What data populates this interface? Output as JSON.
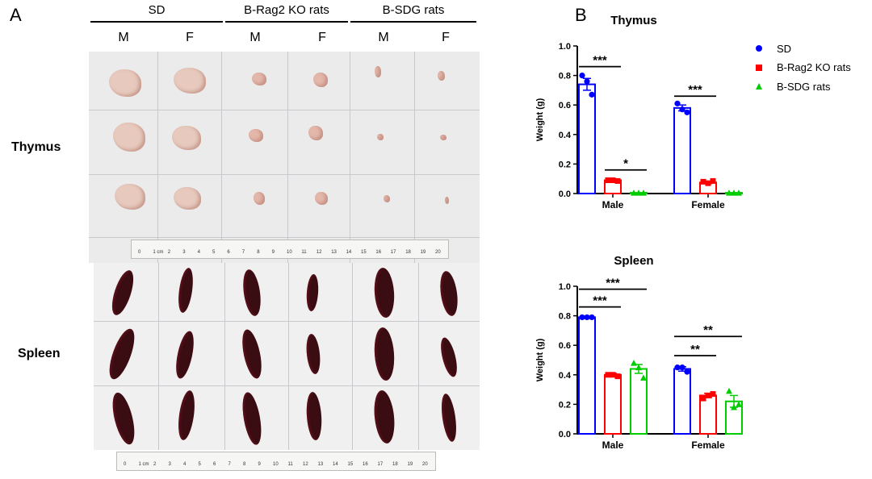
{
  "panel_a": {
    "letter": "A",
    "groups": [
      "SD",
      "B-Rag2 KO rats",
      "B-SDG rats"
    ],
    "sexes": [
      "M",
      "F",
      "M",
      "F",
      "M",
      "F"
    ],
    "organs": [
      "Thymus",
      "Spleen"
    ],
    "ruler_labels": [
      "0",
      "1 cm",
      "2",
      "3",
      "4",
      "5",
      "6",
      "7",
      "8",
      "9",
      "10",
      "11",
      "12",
      "13",
      "14",
      "15",
      "16",
      "17",
      "18",
      "19",
      "20"
    ]
  },
  "panel_b": {
    "letter": "B",
    "legend": [
      {
        "name": "SD",
        "marker": "circle",
        "color": "#0000ff"
      },
      {
        "name": "B-Rag2 KO rats",
        "marker": "square",
        "color": "#ff0000"
      },
      {
        "name": "B-SDG rats",
        "marker": "triangle",
        "color": "#00cc00"
      }
    ]
  },
  "chart_data": [
    {
      "type": "bar",
      "title": "Thymus",
      "ylabel": "Weight (g)",
      "xlabel": "",
      "categories": [
        "Male",
        "Female"
      ],
      "ylim": [
        0,
        1.0
      ],
      "yticks": [
        "0.0",
        "0.2",
        "0.4",
        "0.6",
        "0.8",
        "1.0"
      ],
      "series": [
        {
          "name": "SD",
          "color": "#0000ff",
          "marker": "circle",
          "values": [
            0.74,
            0.58
          ],
          "errors": [
            0.04,
            0.02
          ],
          "points": [
            [
              0.8,
              0.76,
              0.67
            ],
            [
              0.61,
              0.57,
              0.55
            ]
          ]
        },
        {
          "name": "B-Rag2 KO rats",
          "color": "#ff0000",
          "marker": "square",
          "values": [
            0.09,
            0.075
          ],
          "errors": [
            0.005,
            0.008
          ],
          "points": [
            [
              0.09,
              0.09,
              0.085
            ],
            [
              0.08,
              0.07,
              0.085
            ]
          ]
        },
        {
          "name": "B-SDG rats",
          "color": "#00cc00",
          "marker": "triangle",
          "values": [
            0.005,
            0.005
          ],
          "errors": [
            0.0,
            0.0
          ],
          "points": [
            [
              0.005,
              0.005,
              0.005
            ],
            [
              0.005,
              0.005,
              0.005
            ]
          ]
        }
      ],
      "annotations": [
        {
          "label": "***",
          "category": "Male",
          "from_series": 0,
          "to_series": 1,
          "y": 0.86
        },
        {
          "label": "*",
          "category": "Male",
          "from_series": 1,
          "to_series": 2,
          "y": 0.16
        },
        {
          "label": "***",
          "category": "Female",
          "from_series": 0,
          "to_series": 1,
          "y": 0.66
        }
      ],
      "grid": false
    },
    {
      "type": "bar",
      "title": "Spleen",
      "ylabel": "Weight (g)",
      "xlabel": "",
      "categories": [
        "Male",
        "Female"
      ],
      "ylim": [
        0,
        1.0
      ],
      "yticks": [
        "0.0",
        "0.2",
        "0.4",
        "0.6",
        "0.8",
        "1.0"
      ],
      "series": [
        {
          "name": "SD",
          "color": "#0000ff",
          "marker": "circle",
          "values": [
            0.79,
            0.44
          ],
          "errors": [
            0.005,
            0.015
          ],
          "points": [
            [
              0.79,
              0.79,
              0.79
            ],
            [
              0.45,
              0.45,
              0.42
            ]
          ]
        },
        {
          "name": "B-Rag2 KO rats",
          "color": "#ff0000",
          "marker": "square",
          "values": [
            0.4,
            0.26
          ],
          "errors": [
            0.01,
            0.015
          ],
          "points": [
            [
              0.4,
              0.4,
              0.39
            ],
            [
              0.24,
              0.26,
              0.27
            ]
          ]
        },
        {
          "name": "B-SDG rats",
          "color": "#00cc00",
          "marker": "triangle",
          "values": [
            0.44,
            0.22
          ],
          "errors": [
            0.03,
            0.04
          ],
          "points": [
            [
              0.48,
              0.45,
              0.38
            ],
            [
              0.29,
              0.18,
              0.2
            ]
          ]
        }
      ],
      "annotations": [
        {
          "label": "***",
          "category": "Male",
          "from_series": 0,
          "to_series": 2,
          "y": 0.98
        },
        {
          "label": "***",
          "category": "Male",
          "from_series": 0,
          "to_series": 1,
          "y": 0.86
        },
        {
          "label": "**",
          "category": "Female",
          "from_series": 0,
          "to_series": 2,
          "y": 0.66
        },
        {
          "label": "**",
          "category": "Female",
          "from_series": 0,
          "to_series": 1,
          "y": 0.53
        }
      ],
      "grid": false
    }
  ]
}
